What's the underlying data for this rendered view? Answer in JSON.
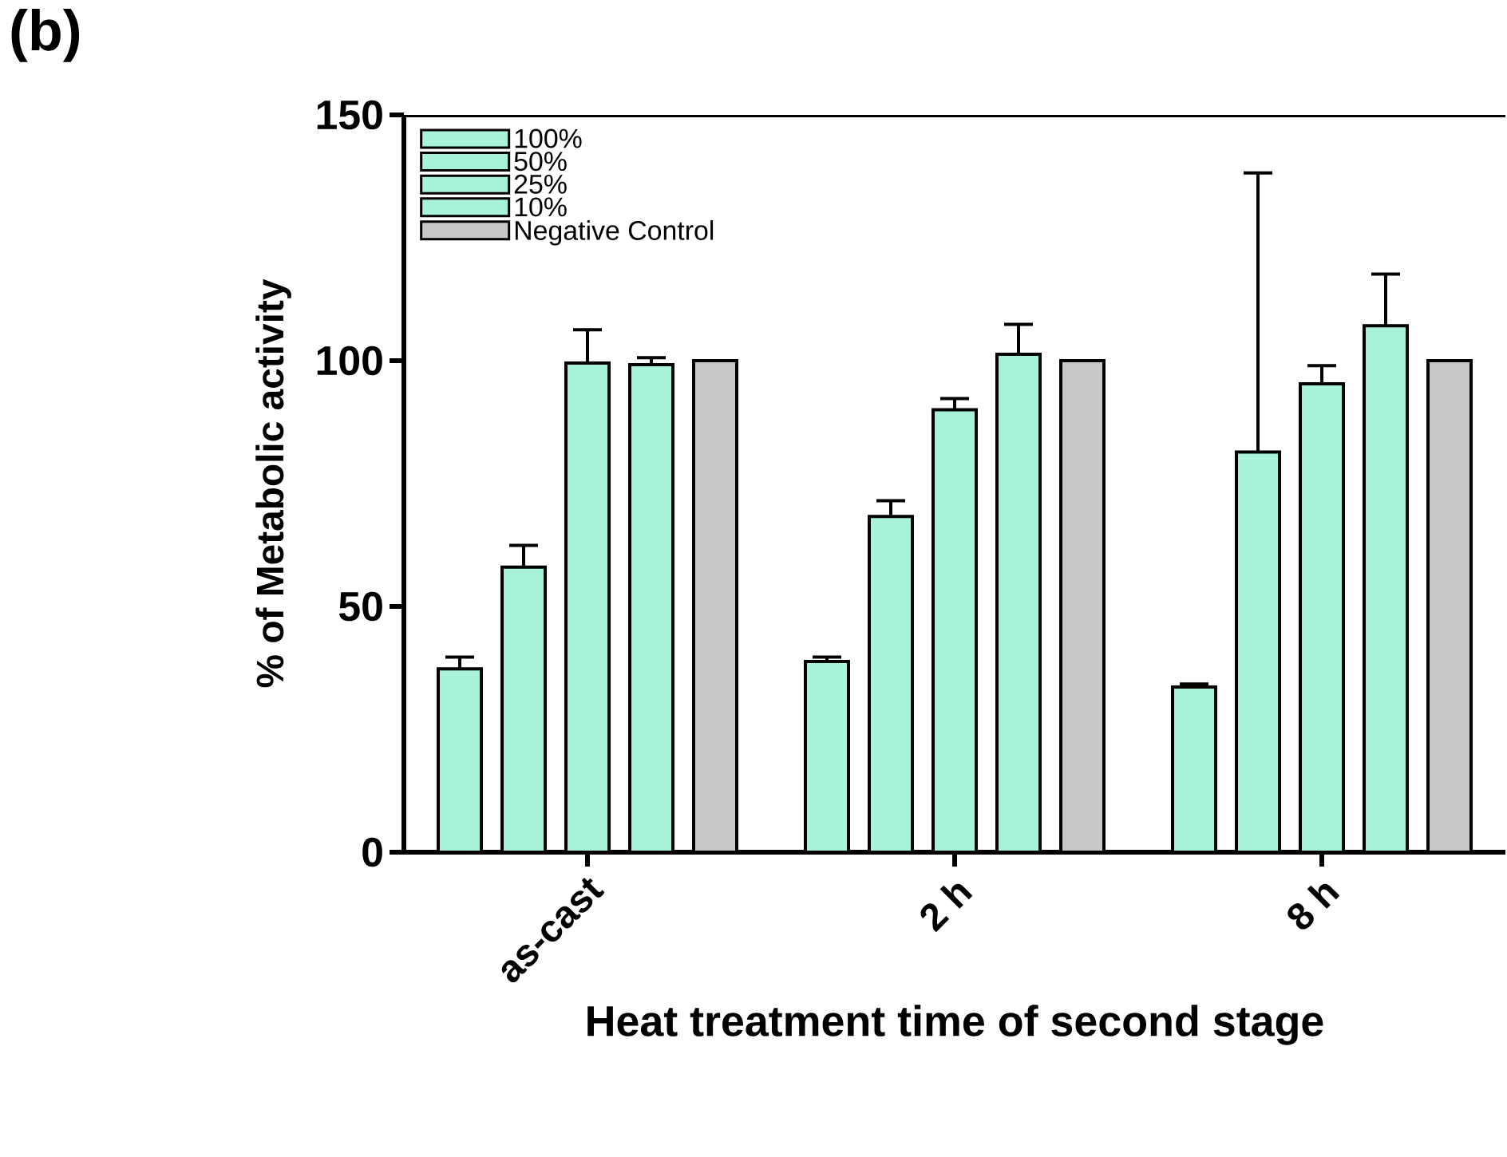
{
  "chart_data": {
    "type": "bar",
    "title": "(b)",
    "xlabel": "Heat treatment time of second stage",
    "ylabel": "% of Metabolic activity",
    "categories": [
      "as-cast",
      "2 h",
      "8 h"
    ],
    "series": [
      {
        "name": "100%",
        "color": "#a8f2da",
        "values": [
          37.3,
          38.8,
          33.6
        ],
        "errors": [
          2.4,
          0.9,
          0.6
        ]
      },
      {
        "name": "50%",
        "color": "#a8f2da",
        "values": [
          58.0,
          68.3,
          81.4
        ],
        "errors": [
          4.4,
          3.2,
          56.8
        ]
      },
      {
        "name": "25%",
        "color": "#a8f2da",
        "values": [
          99.5,
          90.0,
          95.3
        ],
        "errors": [
          6.8,
          2.3,
          3.7
        ]
      },
      {
        "name": "10%",
        "color": "#a8f2da",
        "values": [
          99.2,
          101.3,
          107.1
        ],
        "errors": [
          1.4,
          6.1,
          10.5
        ]
      },
      {
        "name": "Negative Control",
        "color": "#c8c8c8",
        "values": [
          100,
          100,
          100
        ]
      }
    ],
    "ylim": [
      0,
      150
    ],
    "yticks": [
      0,
      50,
      100,
      150
    ],
    "grid": false,
    "legend": "top left"
  }
}
